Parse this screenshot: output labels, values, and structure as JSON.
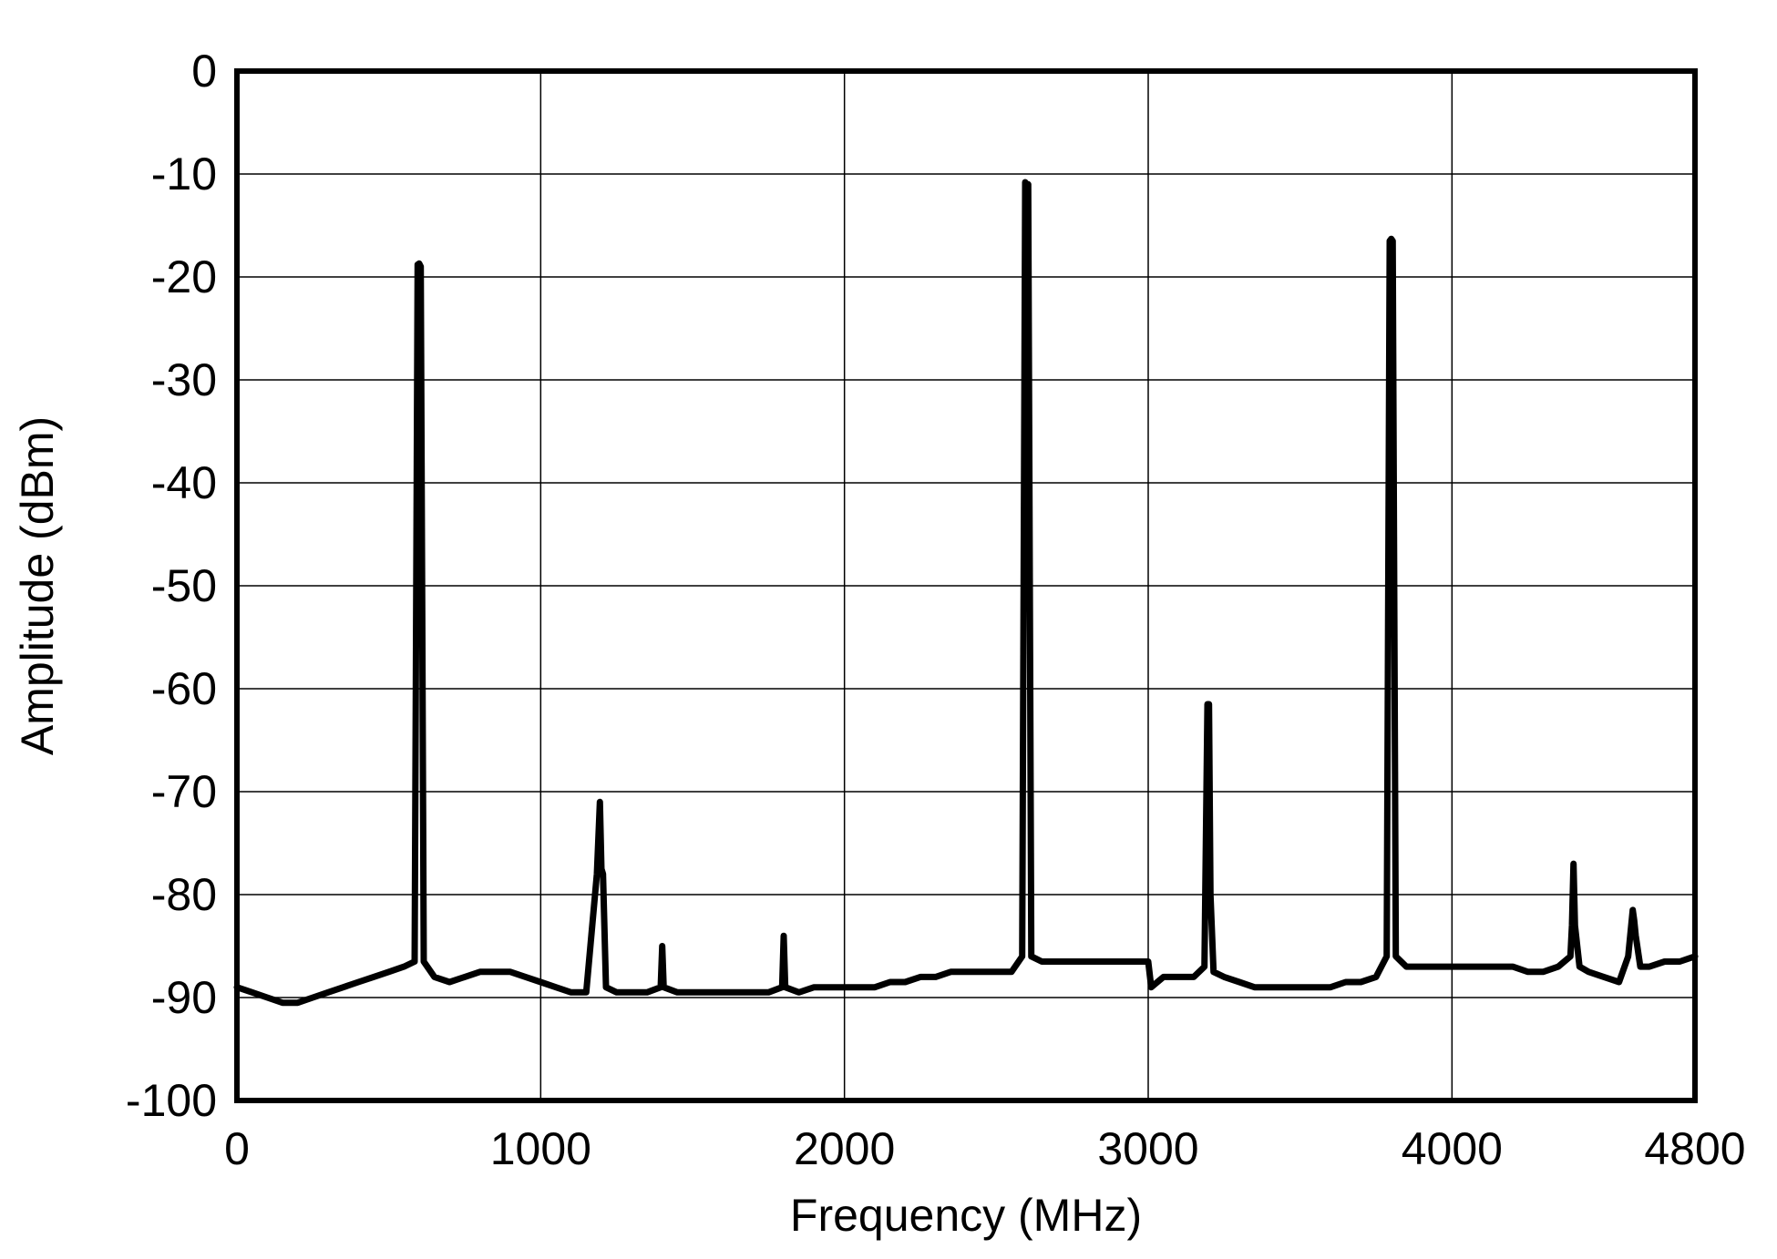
{
  "chart_data": {
    "type": "line",
    "title": "",
    "xlabel": "Frequency (MHz)",
    "ylabel": "Amplitude (dBm)",
    "xlim": [
      0,
      4800
    ],
    "ylim": [
      -100,
      0
    ],
    "xticks": [
      0,
      1000,
      2000,
      3000,
      4000,
      4800
    ],
    "xtick_labels": [
      "0",
      "1000",
      "2000",
      "3000",
      "4000",
      "4800"
    ],
    "yticks": [
      0,
      -10,
      -20,
      -30,
      -40,
      -50,
      -60,
      -70,
      -80,
      -90,
      -100
    ],
    "ytick_labels": [
      "0",
      "-10",
      "-20",
      "-30",
      "-40",
      "-50",
      "-60",
      "-70",
      "-80",
      "-90",
      "-100"
    ],
    "grid": true,
    "line_color": "#000000",
    "series": [
      {
        "x": [
          0,
          50,
          100,
          150,
          200,
          250,
          300,
          350,
          400,
          450,
          500,
          550,
          585,
          595,
          600,
          605,
          615,
          650,
          700,
          750,
          800,
          850,
          900,
          950,
          1000,
          1050,
          1100,
          1150,
          1185,
          1195,
          1200,
          1205,
          1215,
          1250,
          1300,
          1350,
          1395,
          1400,
          1405,
          1450,
          1500,
          1550,
          1600,
          1650,
          1700,
          1750,
          1795,
          1800,
          1805,
          1850,
          1900,
          1950,
          2000,
          2050,
          2100,
          2150,
          2200,
          2250,
          2300,
          2350,
          2400,
          2450,
          2500,
          2550,
          2585,
          2595,
          2600,
          2605,
          2615,
          2650,
          2700,
          2750,
          2800,
          2850,
          2900,
          2950,
          3000,
          3010,
          3050,
          3100,
          3150,
          3185,
          3195,
          3200,
          3205,
          3215,
          3250,
          3300,
          3350,
          3400,
          3450,
          3500,
          3550,
          3600,
          3650,
          3700,
          3750,
          3785,
          3795,
          3800,
          3805,
          3815,
          3850,
          3900,
          3950,
          4000,
          4050,
          4100,
          4150,
          4200,
          4250,
          4300,
          4350,
          4390,
          4395,
          4400,
          4405,
          4420,
          4450,
          4500,
          4550,
          4580,
          4595,
          4600,
          4605,
          4620,
          4650,
          4700,
          4750,
          4800
        ],
        "y": [
          -89,
          -89.5,
          -90,
          -90.5,
          -90.5,
          -90,
          -89.5,
          -89,
          -88.5,
          -88,
          -87.5,
          -87,
          -86.5,
          -18.8,
          -18.7,
          -19,
          -86.5,
          -88,
          -88.5,
          -88,
          -87.5,
          -87.5,
          -87.5,
          -88,
          -88.5,
          -89,
          -89.5,
          -89.5,
          -78,
          -71,
          -77.5,
          -78,
          -89,
          -89.5,
          -89.5,
          -89.5,
          -89,
          -85,
          -89,
          -89.5,
          -89.5,
          -89.5,
          -89.5,
          -89.5,
          -89.5,
          -89.5,
          -89,
          -84,
          -89,
          -89.5,
          -89,
          -89,
          -89,
          -89,
          -89,
          -88.5,
          -88.5,
          -88,
          -88,
          -87.5,
          -87.5,
          -87.5,
          -87.5,
          -87.5,
          -86,
          -10.8,
          -11,
          -11,
          -86,
          -86.5,
          -86.5,
          -86.5,
          -86.5,
          -86.5,
          -86.5,
          -86.5,
          -86.5,
          -89,
          -88,
          -88,
          -88,
          -87,
          -61.5,
          -61.5,
          -80,
          -87.5,
          -88,
          -88.5,
          -89,
          -89,
          -89,
          -89,
          -89,
          -89,
          -88.5,
          -88.5,
          -88,
          -86,
          -16.5,
          -16.3,
          -16.5,
          -86,
          -87,
          -87,
          -87,
          -87,
          -87,
          -87,
          -87,
          -87,
          -87.5,
          -87.5,
          -87,
          -86,
          -83,
          -77,
          -83,
          -87,
          -87.5,
          -88,
          -88.5,
          -86,
          -81.5,
          -82.5,
          -84,
          -87,
          -87,
          -86.5,
          -86.5,
          -86
        ]
      }
    ]
  }
}
